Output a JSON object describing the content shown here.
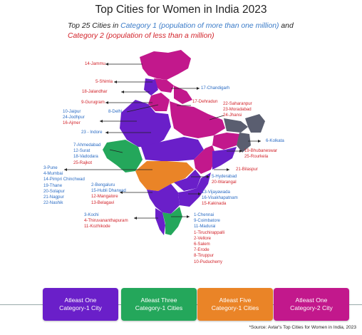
{
  "title": "Top Cities for Women in India 2023",
  "subtitle": {
    "part1": "Top 25 Cities in ",
    "cat1": "Category 1 (population of more than one million)",
    "and": " and",
    "cat2": "Category 2 (population of less than a million)"
  },
  "colors": {
    "cat1": "#2b6cc4",
    "cat2": "#d2232a",
    "purple": "#6a1fc9",
    "green": "#24a75b",
    "orange": "#ea8427",
    "magenta": "#c2188c",
    "gray": "#5a5e70"
  },
  "labels": {
    "jammu": [
      "14-Jammu"
    ],
    "shimla": [
      "5-Shimla"
    ],
    "jalandhar": [
      "18-Jalandhar"
    ],
    "gurugram": [
      "9-Gurugram"
    ],
    "chandigarh": [
      "17-Chandigarh"
    ],
    "dehradun": [
      "17-Dehradun"
    ],
    "delhi": [
      "8-Delhi"
    ],
    "up_cities": [
      "22-Saharanpur",
      "23-Moradabad",
      "24-Jhansi"
    ],
    "rajasthan": [
      "10-Jaipur",
      "24-Jodhpur",
      "16-Ajmer"
    ],
    "indore": [
      "23 - Indore"
    ],
    "kolkata": [
      "6-Kolkata"
    ],
    "gujarat": [
      "7-Ahmedabad",
      "12-Surat",
      "18-Vadodara",
      "25-Rajkot"
    ],
    "odisha": [
      "19-Bhubaneswar",
      "25-Rourkela"
    ],
    "bilaspur": [
      "21-Bilaspur"
    ],
    "maharashtra": [
      "3-Pune",
      "4-Mumbai",
      "14-Pimpri Chinchwad",
      "19-Thane",
      "20-Solapur",
      "21-Nagpur",
      "22-Nashik"
    ],
    "telangana": [
      "5-Hyderabad",
      "20-Warangal"
    ],
    "karnataka": [
      "2-Bengaluru",
      "15-Hubli Dharwad",
      "12-Mangalore",
      "13-Belagavi"
    ],
    "andhra": [
      "13-Vijayawada",
      "16-Visakhapatnam",
      "15-Kakinada"
    ],
    "kerala": [
      "3-Kochi",
      "4-Thiruvananthapuram",
      "11-Kozhikode"
    ],
    "tamilnadu": [
      "1-Chennai",
      "9-Coimbatore",
      "11-Madurai",
      "1-Tiruchirappalli",
      "2-Vellore",
      "6-Salem",
      "7-Erode",
      "8-Tiruppur",
      "10-Puducherry"
    ]
  },
  "legend": [
    {
      "line1": "Atleast One",
      "line2": "Category-1 City",
      "color": "#6a1fc9"
    },
    {
      "line1": "Atleast Three",
      "line2": "Category-1 Cities",
      "color": "#24a75b"
    },
    {
      "line1": "Atleast Five",
      "line2": "Category-1 Cities",
      "color": "#ea8427"
    },
    {
      "line1": "Atleast One",
      "line2": "Category-2 City",
      "color": "#c2188c"
    }
  ],
  "source": "*Source: Avtar's Top Cities for Women in India, 2023"
}
